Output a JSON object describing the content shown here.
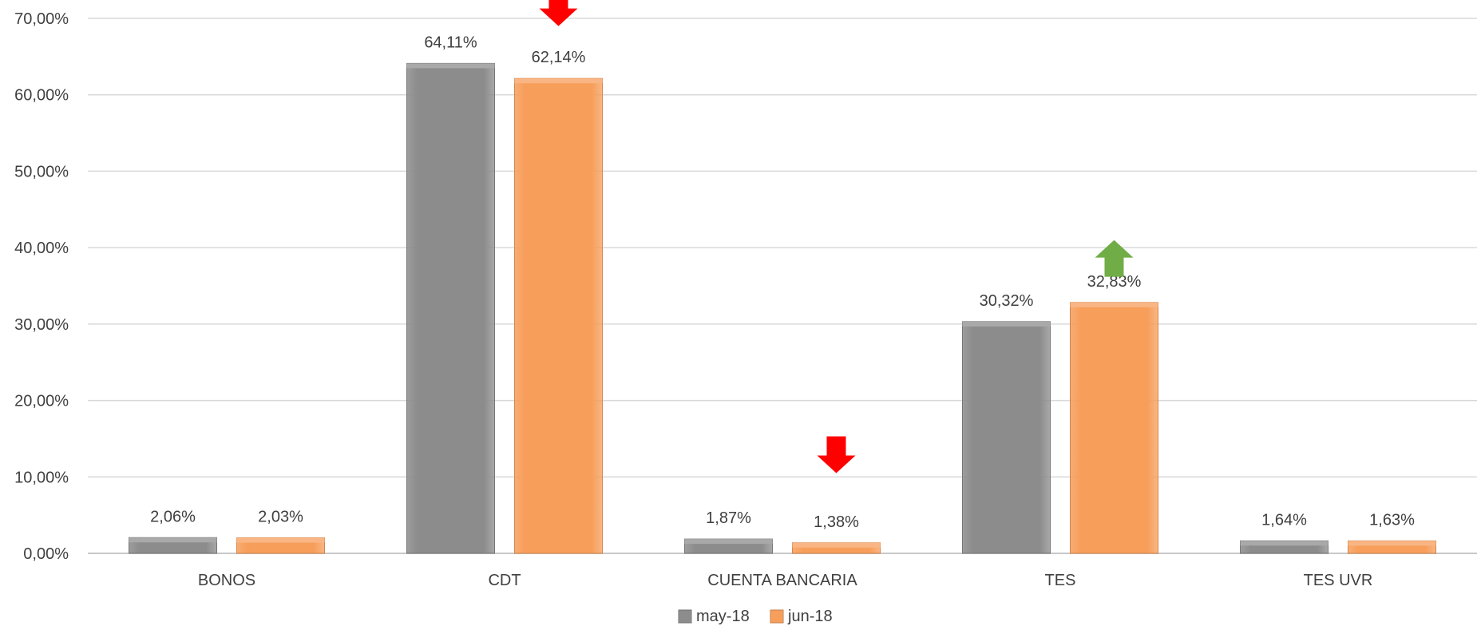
{
  "chart_data": {
    "type": "bar",
    "title": "",
    "xlabel": "",
    "ylabel": "",
    "categories": [
      "BONOS",
      "CDT",
      "CUENTA BANCARIA",
      "TES",
      "TES UVR"
    ],
    "series": [
      {
        "name": "may-18",
        "color": "#8c8c8c",
        "values": [
          2.06,
          64.11,
          1.87,
          30.32,
          1.64
        ],
        "labels": [
          "2,06%",
          "64,11%",
          "1,87%",
          "30,32%",
          "1,64%"
        ]
      },
      {
        "name": "jun-18",
        "color": "#f79e5b",
        "values": [
          2.03,
          62.14,
          1.38,
          32.83,
          1.63
        ],
        "labels": [
          "2,03%",
          "62,14%",
          "1,38%",
          "32,83%",
          "1,63%"
        ]
      }
    ],
    "ylim": [
      0,
      70
    ],
    "yticks": [
      0,
      10,
      20,
      30,
      40,
      50,
      60,
      70
    ],
    "ytick_labels": [
      "0,00%",
      "10,00%",
      "20,00%",
      "30,00%",
      "40,00%",
      "50,00%",
      "60,00%",
      "70,00%"
    ],
    "grid": true,
    "legend_position": "bottom-center",
    "annotations": [
      {
        "type": "arrow-down",
        "category": "CDT",
        "series": "jun-18",
        "value": 69,
        "color": "#ff0000"
      },
      {
        "type": "arrow-down",
        "category": "CUENTA BANCARIA",
        "series": "jun-18",
        "value": 10.5,
        "color": "#ff0000"
      },
      {
        "type": "arrow-up",
        "category": "TES",
        "series": "jun-18",
        "value": 41,
        "color": "#70ad47"
      }
    ]
  }
}
